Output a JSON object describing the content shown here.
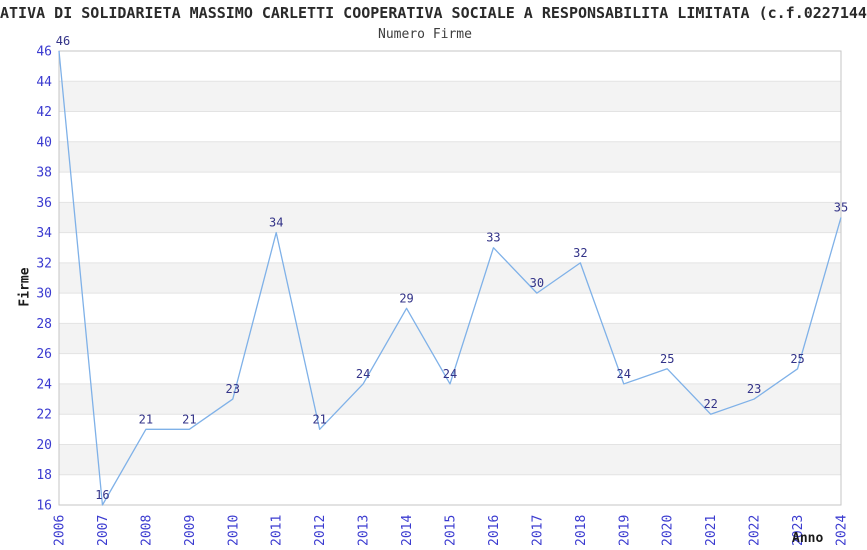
{
  "header": {
    "title": "ATIVA DI SOLIDARIETA MASSIMO CARLETTI COOPERATIVA SOCIALE A RESPONSABILITA LIMITATA (c.f.0227144",
    "subtitle": "Numero Firme"
  },
  "chart_data": {
    "type": "line",
    "title": "Numero Firme",
    "xlabel": "Anno",
    "ylabel": "Firme",
    "categories": [
      "2006",
      "2007",
      "2008",
      "2009",
      "2010",
      "2011",
      "2012",
      "2013",
      "2014",
      "2015",
      "2016",
      "2017",
      "2018",
      "2019",
      "2020",
      "2021",
      "2022",
      "2023",
      "2024"
    ],
    "values": [
      46,
      16,
      21,
      21,
      23,
      34,
      21,
      24,
      29,
      24,
      33,
      30,
      32,
      24,
      25,
      22,
      23,
      25,
      35
    ],
    "ylim": [
      16,
      46
    ],
    "ytick_step": 2,
    "grid": "horizontal-bands",
    "legend": "none",
    "colors": {
      "line": "#7FB1E8",
      "tick_label": "#3B3BD0",
      "value_label": "#333388",
      "band": "#F3F3F3",
      "gridline": "#E3E3E3",
      "border": "#C6C6C6"
    }
  }
}
